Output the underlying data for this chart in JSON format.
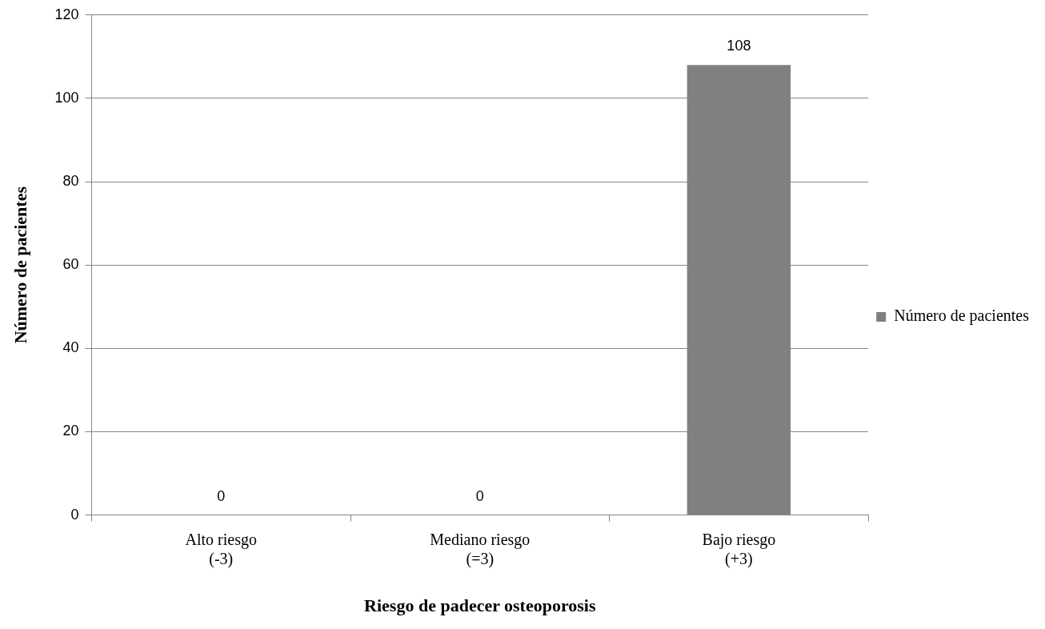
{
  "chart_data": {
    "type": "bar",
    "xlabel": "Riesgo de padecer osteoporosis",
    "ylabel": "Número de pacientes",
    "categories": [
      "Alto riesgo\n(-3)",
      "Mediano riesgo\n(=3)",
      "Bajo riesgo\n(+3)"
    ],
    "series": [
      {
        "name": "Número de pacientes",
        "color": "#808080",
        "values": [
          0,
          0,
          108
        ]
      }
    ],
    "ylim": [
      0,
      120
    ],
    "yticks": [
      0,
      20,
      40,
      60,
      80,
      100,
      120
    ],
    "grid": "y",
    "legend": "right",
    "data_labels": true
  }
}
